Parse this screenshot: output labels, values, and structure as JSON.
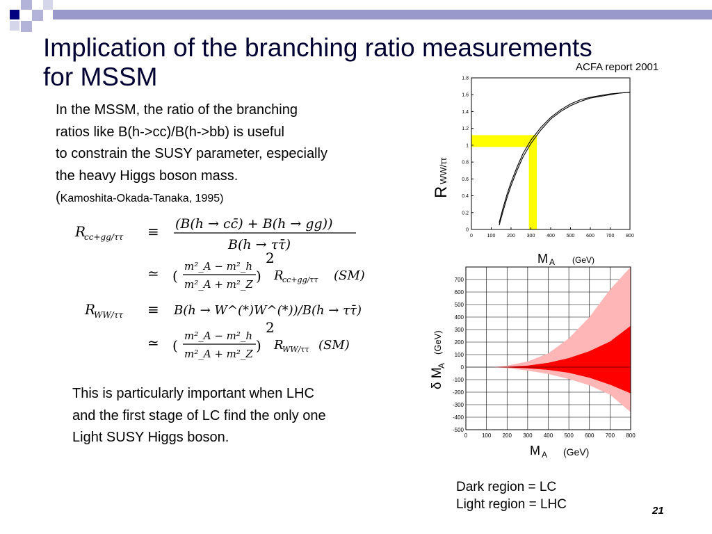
{
  "slide": {
    "title_line1": "Implication of the branching ratio measurements",
    "title_line2": "for MSSM",
    "source_note": "ACFA report 2001",
    "intro_lines": [
      "In the MSSM, the ratio of the branching",
      "ratios like B(h->cc)/B(h->bb) is useful",
      "to constrain the SUSY parameter, especially",
      "the heavy Higgs boson mass."
    ],
    "citation_open": "(",
    "citation": "Kamoshita-Okada-Tanaka, 1995)",
    "bottom_lines": [
      "This is particularly important when LHC",
      "and the first stage of LC find the only one",
      "Light SUSY Higgs boson."
    ],
    "legend_dark": "Dark region = LC",
    "legend_light": "Light region = LHC",
    "page_number": "21",
    "accent_color": "#000080",
    "decor_color": "#9999cc"
  },
  "formula": {
    "lhs1": "R",
    "lhs1_sub": "cc+gg/ττ",
    "lhs2": "R",
    "lhs2_sub": "WW/ττ",
    "equiv": "≡",
    "approx": "≃",
    "rhs1_num": "(B(h → cc̄) + B(h → gg))",
    "rhs1_den": "B(h → ττ̄)",
    "frac_num": "m²_A − m²_h",
    "frac_den": "m²_A + m²_Z",
    "power": "2",
    "sm1": "R",
    "sm1_sub": "cc+gg/ττ",
    "sm1_tail": "(SM)",
    "rhs2": "B(h → W^(*)W^(*))/B(h → ττ̄)",
    "sm2": "R",
    "sm2_sub": "WW/ττ",
    "sm2_tail": "(SM)"
  },
  "chart_data": [
    {
      "type": "line",
      "ylabel": "R",
      "ylabel_sub": "WW/ττ",
      "xlabel": "M",
      "xlabel_sub": "A",
      "xunit": "(GeV)",
      "xlim": [
        0,
        800
      ],
      "ylim": [
        0,
        1.8
      ],
      "x_ticks": [
        "0",
        "100",
        "200",
        "300",
        "400",
        "500",
        "600",
        "700",
        "800"
      ],
      "y_ticks": [
        "0",
        "0.2",
        "0.4",
        "0.6",
        "0.8",
        "1",
        "1.2",
        "1.4",
        "1.6",
        "1.8"
      ],
      "highlight_color": "#ffff00",
      "highlight_x": [
        290,
        330
      ],
      "highlight_y": [
        0.98,
        1.12
      ],
      "series": [
        {
          "x": [
            140,
            160,
            180,
            200,
            230,
            260,
            300,
            350,
            400,
            450,
            500,
            550,
            600,
            650,
            700,
            750,
            800
          ],
          "y": [
            0.05,
            0.22,
            0.38,
            0.52,
            0.7,
            0.86,
            1.02,
            1.18,
            1.31,
            1.4,
            1.47,
            1.52,
            1.56,
            1.58,
            1.6,
            1.62,
            1.63
          ]
        },
        {
          "x": [
            140,
            160,
            180,
            200,
            230,
            260,
            300,
            350,
            400,
            450,
            500,
            550,
            600,
            650,
            700,
            750,
            800
          ],
          "y": [
            0.08,
            0.26,
            0.42,
            0.56,
            0.74,
            0.9,
            1.06,
            1.21,
            1.33,
            1.42,
            1.49,
            1.54,
            1.57,
            1.59,
            1.61,
            1.62,
            1.63
          ]
        }
      ]
    },
    {
      "type": "area",
      "ylabel": "δ M",
      "ylabel_sub": "A",
      "yunit": "(GeV)",
      "xlabel": "M",
      "xlabel_sub": "A",
      "xunit": "(GeV)",
      "xlim": [
        0,
        800
      ],
      "ylim": [
        -500,
        800
      ],
      "x_ticks": [
        "0",
        "100",
        "200",
        "300",
        "400",
        "500",
        "600",
        "700",
        "800"
      ],
      "y_ticks": [
        "-500",
        "-400",
        "-300",
        "-200",
        "-100",
        "0",
        "100",
        "200",
        "300",
        "400",
        "500",
        "600",
        "700"
      ],
      "light_color": "#ffb6b6",
      "dark_color": "#ff0000",
      "series": [
        {
          "name": "Light region",
          "x": [
            130,
            200,
            300,
            400,
            500,
            600,
            700,
            800
          ],
          "upper": [
            0,
            12,
            45,
            110,
            230,
            400,
            620,
            800
          ],
          "lower": [
            0,
            -8,
            -28,
            -55,
            -95,
            -145,
            -220,
            -360
          ]
        },
        {
          "name": "Dark region",
          "x": [
            130,
            200,
            300,
            400,
            500,
            600,
            700,
            800
          ],
          "upper": [
            0,
            3,
            12,
            35,
            72,
            128,
            205,
            330
          ],
          "lower": [
            0,
            -3,
            -10,
            -22,
            -45,
            -85,
            -140,
            -210
          ]
        }
      ]
    }
  ]
}
